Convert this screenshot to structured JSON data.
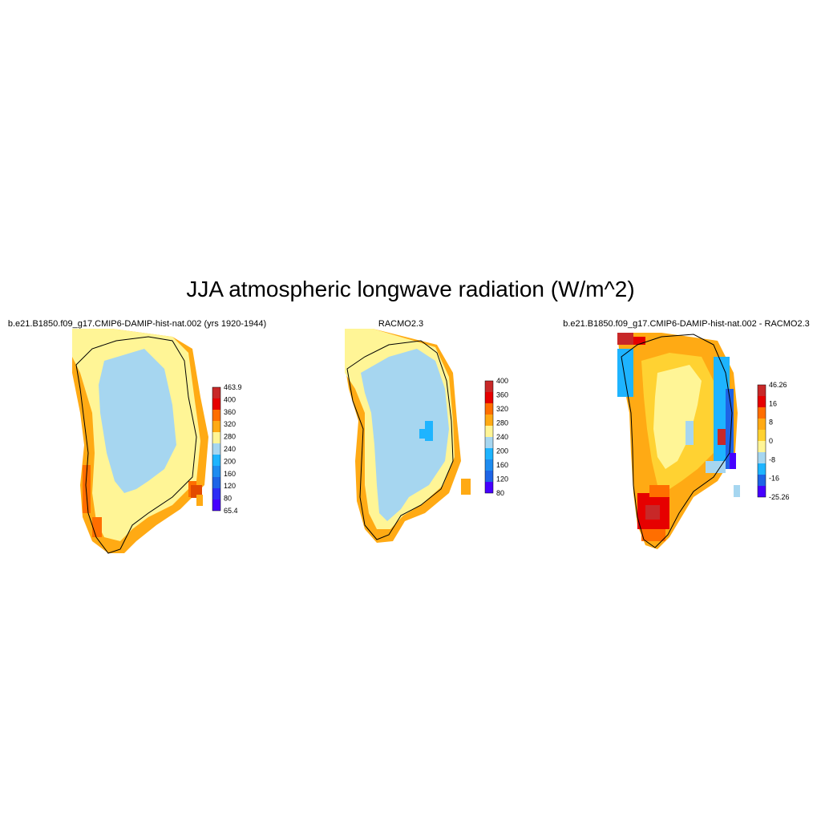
{
  "title": "JJA atmospheric longwave radiation (W/m^2)",
  "panels": [
    {
      "title": "b.e21.B1850.f09_g17.CMIP6-DAMIP-hist-nat.002 (yrs 1920-1944)",
      "colorbar": {
        "labels": [
          "463.9",
          "400",
          "360",
          "320",
          "280",
          "240",
          "200",
          "160",
          "120",
          "80",
          "65.4"
        ],
        "colors": [
          "#c82828",
          "#e60000",
          "#ff6e00",
          "#ffaa14",
          "#fff596",
          "#a6d6f0",
          "#1eb4ff",
          "#1e8cf0",
          "#1e64e6",
          "#2d2df5",
          "#4600ff"
        ]
      }
    },
    {
      "title": "RACMO2.3",
      "colorbar": {
        "labels": [
          "400",
          "360",
          "320",
          "280",
          "240",
          "200",
          "160",
          "120",
          "80"
        ],
        "colors": [
          "#c82828",
          "#e60000",
          "#ff6e00",
          "#ffaa14",
          "#fff596",
          "#a6d6f0",
          "#1eb4ff",
          "#1e8cf0",
          "#1e64e6",
          "#4600ff"
        ]
      }
    },
    {
      "title": "b.e21.B1850.f09_g17.CMIP6-DAMIP-hist-nat.002 - RACMO2.3",
      "colorbar": {
        "labels": [
          "46.26",
          "16",
          "8",
          "0",
          "-8",
          "-16",
          "-25.26"
        ],
        "colors": [
          "#c82828",
          "#e60000",
          "#ff6e00",
          "#ffaa14",
          "#ffd232",
          "#fff596",
          "#a6d6f0",
          "#1eb4ff",
          "#1e64e6",
          "#4600ff"
        ]
      }
    }
  ]
}
